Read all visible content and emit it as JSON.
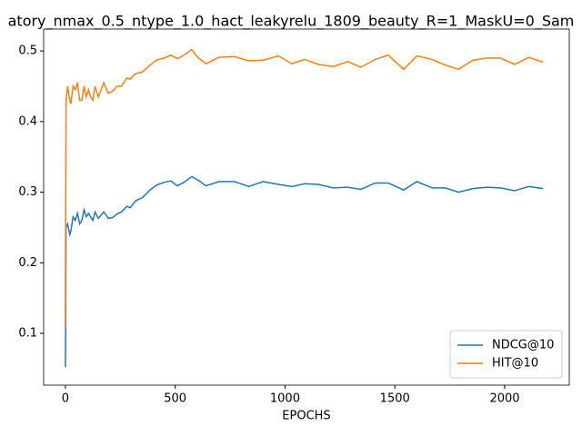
{
  "chart_data": {
    "type": "line",
    "title": "atory_nmax_0.5_ntype_1.0_hact_leakyrelu_1809_beauty_R=1_MaskU=0_Sam",
    "xlabel": "EPOCHS",
    "x": [
      0,
      1,
      3,
      10,
      20,
      25,
      35,
      45,
      55,
      65,
      75,
      85,
      95,
      105,
      115,
      125,
      135,
      150,
      175,
      195,
      215,
      235,
      255,
      280,
      295,
      320,
      350,
      385,
      415,
      450,
      480,
      510,
      540,
      575,
      605,
      640,
      700,
      770,
      835,
      900,
      970,
      1030,
      1090,
      1150,
      1220,
      1285,
      1345,
      1410,
      1470,
      1540,
      1600,
      1670,
      1730,
      1790,
      1855,
      1920,
      1980,
      2045,
      2110,
      2175
    ],
    "series": [
      {
        "name": "NDCG@10",
        "color": "#1f77b4",
        "values": [
          0.052,
          0.105,
          0.25,
          0.255,
          0.24,
          0.245,
          0.265,
          0.26,
          0.27,
          0.255,
          0.26,
          0.275,
          0.265,
          0.27,
          0.265,
          0.26,
          0.272,
          0.263,
          0.272,
          0.263,
          0.264,
          0.269,
          0.272,
          0.28,
          0.278,
          0.288,
          0.292,
          0.303,
          0.31,
          0.314,
          0.316,
          0.309,
          0.314,
          0.322,
          0.317,
          0.309,
          0.315,
          0.315,
          0.308,
          0.315,
          0.311,
          0.308,
          0.312,
          0.311,
          0.306,
          0.307,
          0.304,
          0.313,
          0.313,
          0.303,
          0.315,
          0.306,
          0.306,
          0.3,
          0.305,
          0.307,
          0.306,
          0.302,
          0.308,
          0.305
        ]
      },
      {
        "name": "HIT@10",
        "color": "#ff7f0e",
        "values": [
          0.11,
          0.25,
          0.43,
          0.45,
          0.43,
          0.425,
          0.45,
          0.445,
          0.455,
          0.43,
          0.43,
          0.45,
          0.435,
          0.445,
          0.435,
          0.43,
          0.45,
          0.435,
          0.455,
          0.44,
          0.443,
          0.45,
          0.45,
          0.462,
          0.46,
          0.468,
          0.47,
          0.48,
          0.487,
          0.49,
          0.494,
          0.489,
          0.494,
          0.502,
          0.49,
          0.482,
          0.491,
          0.492,
          0.486,
          0.487,
          0.493,
          0.482,
          0.488,
          0.481,
          0.478,
          0.485,
          0.477,
          0.488,
          0.494,
          0.474,
          0.493,
          0.488,
          0.48,
          0.474,
          0.487,
          0.49,
          0.49,
          0.481,
          0.491,
          0.484
        ]
      }
    ],
    "xlim": [
      -99,
      2294
    ],
    "xticks": [
      0,
      500,
      1000,
      1500,
      2000
    ],
    "ylim": [
      0.0267,
      0.531
    ],
    "yticks": [
      0.1,
      0.2,
      0.3,
      0.4,
      0.5
    ],
    "legend": "lower right"
  }
}
